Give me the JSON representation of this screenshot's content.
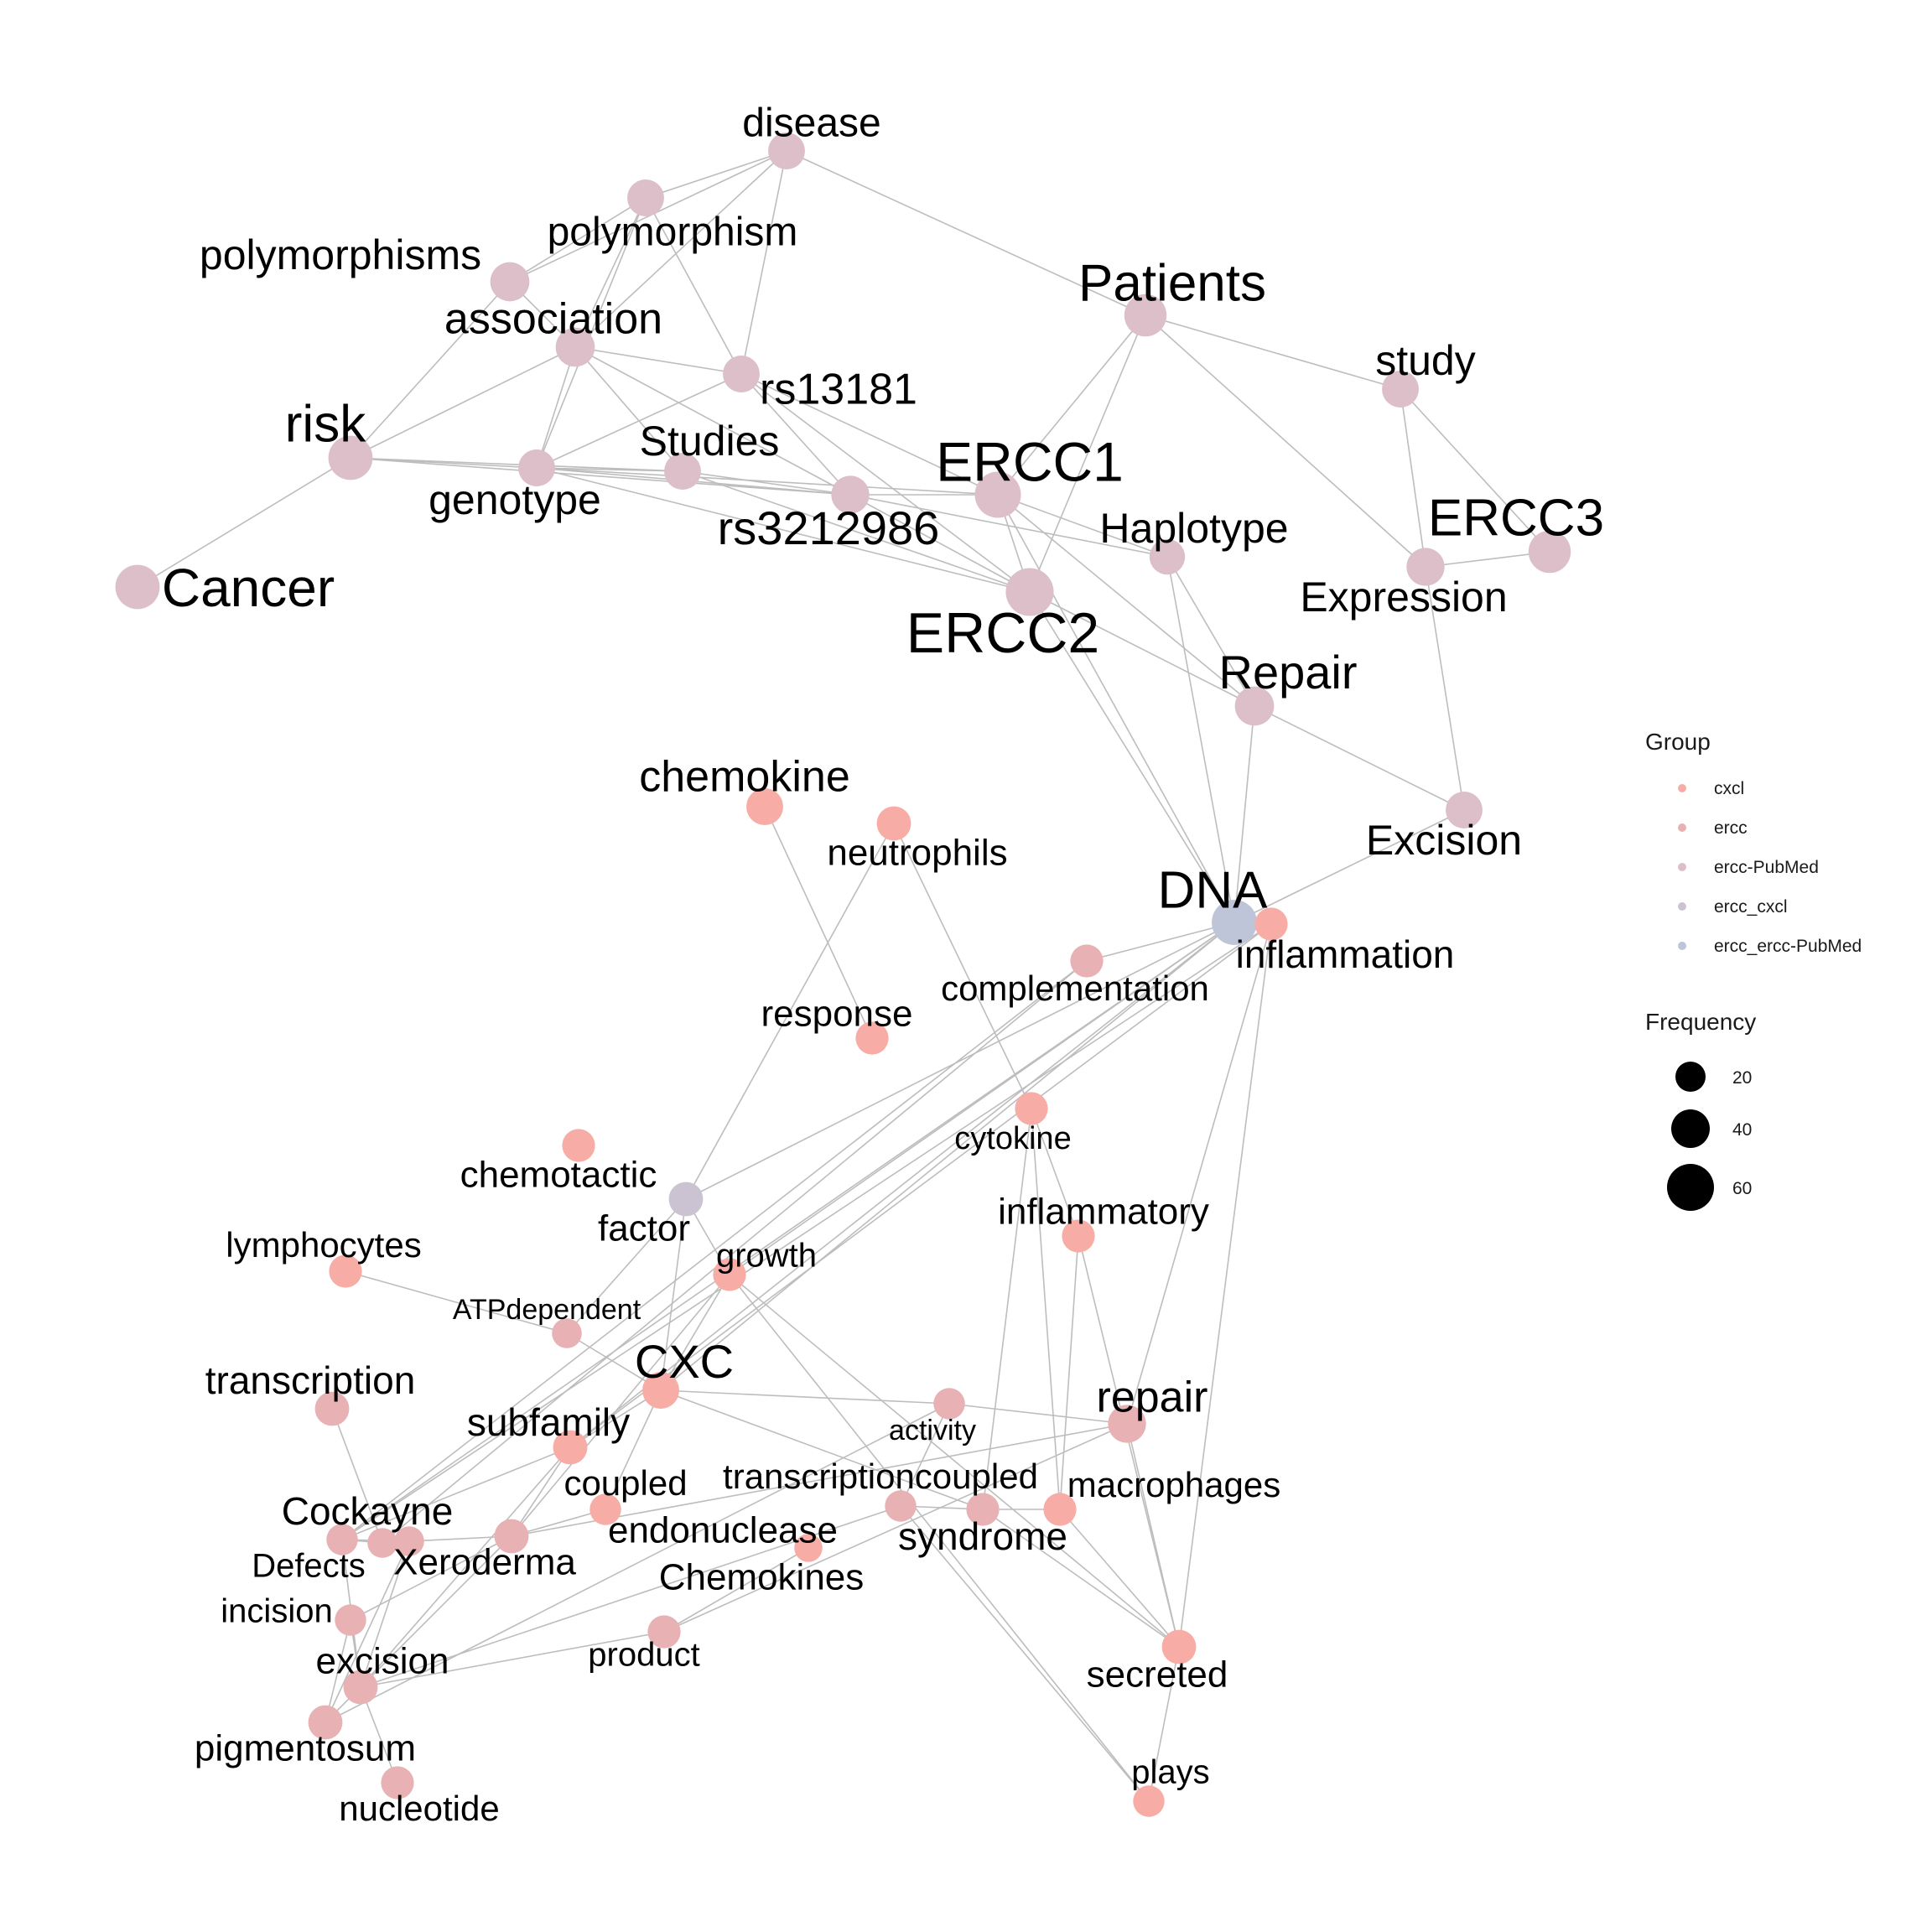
{
  "colors": {
    "cxcl": "#F7ACA6",
    "ercc": "#E8B1B4",
    "ercc-PubMed": "#DCBFC8",
    "ercc_cxcl": "#CCC3D2",
    "ercc_ercc-PubMed": "#BEC5D8",
    "edge": "#BDBDBD"
  },
  "legend": {
    "group_title": "Group",
    "groups": [
      "cxcl",
      "ercc",
      "ercc-PubMed",
      "ercc_cxcl",
      "ercc_ercc-PubMed"
    ],
    "frequency_title": "Frequency",
    "frequencies": [
      {
        "label": "20",
        "value": 20
      },
      {
        "label": "40",
        "value": 40
      },
      {
        "label": "60",
        "value": 60
      }
    ]
  },
  "nodes": [
    {
      "id": "disease",
      "label": "disease",
      "group": "ercc-PubMed",
      "freq": 22
    },
    {
      "id": "polymorphism",
      "label": "polymorphism",
      "group": "ercc-PubMed",
      "freq": 22
    },
    {
      "id": "polymorphisms",
      "label": "polymorphisms",
      "group": "ercc-PubMed",
      "freq": 26
    },
    {
      "id": "association",
      "label": "association",
      "group": "ercc-PubMed",
      "freq": 26
    },
    {
      "id": "Patients",
      "label": "Patients",
      "group": "ercc-PubMed",
      "freq": 32
    },
    {
      "id": "study",
      "label": "study",
      "group": "ercc-PubMed",
      "freq": 22
    },
    {
      "id": "rs13181",
      "label": "rs13181",
      "group": "ercc-PubMed",
      "freq": 22
    },
    {
      "id": "risk",
      "label": "risk",
      "group": "ercc-PubMed",
      "freq": 36
    },
    {
      "id": "Studies",
      "label": "Studies",
      "group": "ercc-PubMed",
      "freq": 22
    },
    {
      "id": "genotype",
      "label": "genotype",
      "group": "ercc-PubMed",
      "freq": 22
    },
    {
      "id": "ERCC1",
      "label": "ERCC1",
      "group": "ercc-PubMed",
      "freq": 40
    },
    {
      "id": "rs3212986",
      "label": "rs3212986",
      "group": "ercc-PubMed",
      "freq": 24
    },
    {
      "id": "Haplotype",
      "label": "Haplotype",
      "group": "ercc-PubMed",
      "freq": 20
    },
    {
      "id": "ERCC3",
      "label": "ERCC3",
      "group": "ercc-PubMed",
      "freq": 32
    },
    {
      "id": "Expression",
      "label": "Expression",
      "group": "ercc-PubMed",
      "freq": 24
    },
    {
      "id": "Cancer",
      "label": "Cancer",
      "group": "ercc-PubMed",
      "freq": 36
    },
    {
      "id": "ERCC2",
      "label": "ERCC2",
      "group": "ercc-PubMed",
      "freq": 44
    },
    {
      "id": "Repair",
      "label": "Repair",
      "group": "ercc-PubMed",
      "freq": 26
    },
    {
      "id": "Excision",
      "label": "Excision",
      "group": "ercc-PubMed",
      "freq": 22
    },
    {
      "id": "DNA",
      "label": "DNA",
      "group": "ercc_ercc-PubMed",
      "freq": 38
    },
    {
      "id": "chemokine",
      "label": "chemokine",
      "group": "cxcl",
      "freq": 22
    },
    {
      "id": "neutrophils",
      "label": "neutrophils",
      "group": "cxcl",
      "freq": 18
    },
    {
      "id": "inflammation",
      "label": "inflammation",
      "group": "cxcl",
      "freq": 16
    },
    {
      "id": "complementation",
      "label": "complementation",
      "group": "ercc",
      "freq": 16
    },
    {
      "id": "response",
      "label": "response",
      "group": "cxcl",
      "freq": 16
    },
    {
      "id": "cytokine",
      "label": "cytokine",
      "group": "cxcl",
      "freq": 16
    },
    {
      "id": "chemotactic",
      "label": "chemotactic",
      "group": "cxcl",
      "freq": 16
    },
    {
      "id": "factor",
      "label": "factor",
      "group": "ercc_cxcl",
      "freq": 18
    },
    {
      "id": "lymphocytes",
      "label": "lymphocytes",
      "group": "cxcl",
      "freq": 16
    },
    {
      "id": "growth",
      "label": "growth",
      "group": "cxcl",
      "freq": 16
    },
    {
      "id": "inflammatory",
      "label": "inflammatory",
      "group": "cxcl",
      "freq": 16
    },
    {
      "id": "ATPdependent",
      "label": "ATPdependent",
      "group": "ercc",
      "freq": 12
    },
    {
      "id": "transcription",
      "label": "transcription",
      "group": "ercc",
      "freq": 18
    },
    {
      "id": "CXC",
      "label": "CXC",
      "group": "cxcl",
      "freq": 22
    },
    {
      "id": "subfamily",
      "label": "subfamily",
      "group": "cxcl",
      "freq": 18
    },
    {
      "id": "activity",
      "label": "activity",
      "group": "ercc",
      "freq": 14
    },
    {
      "id": "repair",
      "label": "repair",
      "group": "ercc",
      "freq": 24
    },
    {
      "id": "coupled",
      "label": "coupled",
      "group": "cxcl",
      "freq": 14
    },
    {
      "id": "transcriptioncoupled",
      "label": "transcriptioncoupled",
      "group": "ercc",
      "freq": 14
    },
    {
      "id": "macrophages",
      "label": "macrophages",
      "group": "cxcl",
      "freq": 16
    },
    {
      "id": "Cockayne",
      "label": "Cockayne",
      "group": "ercc",
      "freq": 14
    },
    {
      "id": "endonuclease",
      "label": "endonuclease",
      "group": "ercc",
      "freq": 18
    },
    {
      "id": "syndrome",
      "label": "syndrome",
      "group": "ercc",
      "freq": 16
    },
    {
      "id": "Defects",
      "label": "Defects",
      "group": "ercc",
      "freq": 12
    },
    {
      "id": "Xeroderma",
      "label": "Xeroderma",
      "group": "ercc",
      "freq": 12
    },
    {
      "id": "Chemokines",
      "label": "Chemokines",
      "group": "cxcl",
      "freq": 10
    },
    {
      "id": "incision",
      "label": "incision",
      "group": "ercc",
      "freq": 14
    },
    {
      "id": "excision",
      "label": "excision",
      "group": "ercc",
      "freq": 18
    },
    {
      "id": "product",
      "label": "product",
      "group": "ercc",
      "freq": 16
    },
    {
      "id": "secreted",
      "label": "secreted",
      "group": "cxcl",
      "freq": 18
    },
    {
      "id": "pigmentosum",
      "label": "pigmentosum",
      "group": "ercc",
      "freq": 18
    },
    {
      "id": "plays",
      "label": "plays",
      "group": "cxcl",
      "freq": 14
    },
    {
      "id": "nucleotide",
      "label": "nucleotide",
      "group": "ercc",
      "freq": 16
    }
  ],
  "edges": [
    [
      "disease",
      "polymorphism"
    ],
    [
      "disease",
      "polymorphisms"
    ],
    [
      "disease",
      "Patients"
    ],
    [
      "disease",
      "association"
    ],
    [
      "disease",
      "rs13181"
    ],
    [
      "polymorphism",
      "association"
    ],
    [
      "polymorphism",
      "rs13181"
    ],
    [
      "polymorphism",
      "genotype"
    ],
    [
      "polymorphism",
      "polymorphisms"
    ],
    [
      "polymorphisms",
      "risk"
    ],
    [
      "polymorphisms",
      "association"
    ],
    [
      "association",
      "risk"
    ],
    [
      "association",
      "genotype"
    ],
    [
      "association",
      "rs13181"
    ],
    [
      "association",
      "Studies"
    ],
    [
      "association",
      "rs3212986"
    ],
    [
      "rs13181",
      "genotype"
    ],
    [
      "rs13181",
      "ERCC1"
    ],
    [
      "rs13181",
      "ERCC2"
    ],
    [
      "rs13181",
      "rs3212986"
    ],
    [
      "risk",
      "genotype"
    ],
    [
      "risk",
      "Cancer"
    ],
    [
      "risk",
      "Studies"
    ],
    [
      "risk",
      "rs3212986"
    ],
    [
      "genotype",
      "Studies"
    ],
    [
      "genotype",
      "rs3212986"
    ],
    [
      "genotype",
      "ERCC1"
    ],
    [
      "genotype",
      "ERCC2"
    ],
    [
      "Studies",
      "rs3212986"
    ],
    [
      "Studies",
      "ERCC2"
    ],
    [
      "rs3212986",
      "ERCC1"
    ],
    [
      "rs3212986",
      "ERCC2"
    ],
    [
      "rs3212986",
      "Haplotype"
    ],
    [
      "Patients",
      "ERCC1"
    ],
    [
      "Patients",
      "ERCC2"
    ],
    [
      "Patients",
      "study"
    ],
    [
      "Patients",
      "Expression"
    ],
    [
      "study",
      "Expression"
    ],
    [
      "study",
      "ERCC3"
    ],
    [
      "ERCC1",
      "ERCC2"
    ],
    [
      "ERCC1",
      "Haplotype"
    ],
    [
      "ERCC1",
      "Repair"
    ],
    [
      "ERCC1",
      "DNA"
    ],
    [
      "ERCC2",
      "Repair"
    ],
    [
      "ERCC2",
      "DNA"
    ],
    [
      "Haplotype",
      "Repair"
    ],
    [
      "Haplotype",
      "DNA"
    ],
    [
      "Expression",
      "Excision"
    ],
    [
      "ERCC3",
      "Expression"
    ],
    [
      "Repair",
      "Excision"
    ],
    [
      "Repair",
      "DNA"
    ],
    [
      "Excision",
      "DNA"
    ],
    [
      "chemokine",
      "response"
    ],
    [
      "neutrophils",
      "factor"
    ],
    [
      "neutrophils",
      "cytokine"
    ],
    [
      "DNA",
      "complementation"
    ],
    [
      "DNA",
      "factor"
    ],
    [
      "DNA",
      "growth"
    ],
    [
      "DNA",
      "subfamily"
    ],
    [
      "DNA",
      "CXC"
    ],
    [
      "DNA",
      "Cockayne"
    ],
    [
      "DNA",
      "inflammation"
    ],
    [
      "inflammation",
      "repair"
    ],
    [
      "inflammation",
      "secreted"
    ],
    [
      "inflammation",
      "Cockayne"
    ],
    [
      "inflammation",
      "subfamily"
    ],
    [
      "complementation",
      "Cockayne"
    ],
    [
      "complementation",
      "Defects"
    ],
    [
      "cytokine",
      "inflammatory"
    ],
    [
      "cytokine",
      "macrophages"
    ],
    [
      "cytokine",
      "syndrome"
    ],
    [
      "inflammatory",
      "secreted"
    ],
    [
      "inflammatory",
      "macrophages"
    ],
    [
      "factor",
      "growth"
    ],
    [
      "factor",
      "ATPdependent"
    ],
    [
      "factor",
      "CXC"
    ],
    [
      "lymphocytes",
      "ATPdependent"
    ],
    [
      "ATPdependent",
      "CXC"
    ],
    [
      "growth",
      "CXC"
    ],
    [
      "growth",
      "plays"
    ],
    [
      "growth",
      "secreted"
    ],
    [
      "growth",
      "endonuclease"
    ],
    [
      "transcription",
      "Defects"
    ],
    [
      "CXC",
      "subfamily"
    ],
    [
      "CXC",
      "coupled"
    ],
    [
      "CXC",
      "activity"
    ],
    [
      "CXC",
      "syndrome"
    ],
    [
      "subfamily",
      "Cockayne"
    ],
    [
      "subfamily",
      "endonuclease"
    ],
    [
      "subfamily",
      "excision"
    ],
    [
      "repair",
      "product"
    ],
    [
      "repair",
      "endonuclease"
    ],
    [
      "repair",
      "activity"
    ],
    [
      "repair",
      "secreted"
    ],
    [
      "activity",
      "transcriptioncoupled"
    ],
    [
      "activity",
      "pigmentosum"
    ],
    [
      "transcriptioncoupled",
      "plays"
    ],
    [
      "transcriptioncoupled",
      "syndrome"
    ],
    [
      "transcriptioncoupled",
      "excision"
    ],
    [
      "syndrome",
      "secreted"
    ],
    [
      "syndrome",
      "macrophages"
    ],
    [
      "endonuclease",
      "excision"
    ],
    [
      "endonuclease",
      "incision"
    ],
    [
      "endonuclease",
      "Xeroderma"
    ],
    [
      "Cockayne",
      "Defects"
    ],
    [
      "Cockayne",
      "Xeroderma"
    ],
    [
      "Cockayne",
      "excision"
    ],
    [
      "Xeroderma",
      "pigmentosum"
    ],
    [
      "Xeroderma",
      "excision"
    ],
    [
      "incision",
      "excision"
    ],
    [
      "incision",
      "pigmentosum"
    ],
    [
      "excision",
      "pigmentosum"
    ],
    [
      "excision",
      "nucleotide"
    ],
    [
      "excision",
      "product"
    ],
    [
      "product",
      "Chemokines"
    ],
    [
      "secreted",
      "plays"
    ],
    [
      "macrophages",
      "secreted"
    ],
    [
      "coupled",
      "endonuclease"
    ]
  ]
}
